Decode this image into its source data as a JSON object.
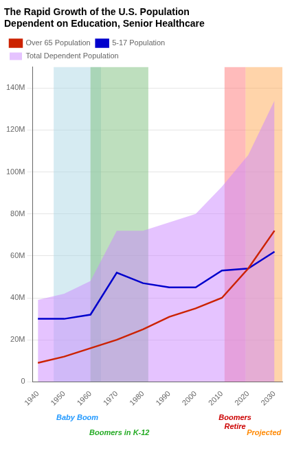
{
  "chart_data": {
    "type": "line",
    "title": [
      "The Rapid Growth of the U.S. Population",
      "Dependent on Education, Senior Healthcare"
    ],
    "x": [
      1940,
      1950,
      1960,
      1970,
      1980,
      1990,
      2000,
      2010,
      2020,
      2030
    ],
    "series": [
      {
        "name": "Total Dependent Population",
        "color": "#CC88FF",
        "type": "area",
        "values": [
          39,
          42,
          48,
          72,
          72,
          76,
          80,
          93,
          108,
          134
        ]
      },
      {
        "name": "Over 65 Population",
        "color": "#CC2200",
        "type": "line",
        "values": [
          9,
          12,
          16,
          20,
          25,
          31,
          35,
          40,
          54,
          72
        ]
      },
      {
        "name": "5-17 Population",
        "color": "#0000CC",
        "type": "line",
        "values": [
          30,
          30,
          32,
          52,
          47,
          45,
          45,
          53,
          54,
          62
        ]
      }
    ],
    "xlim": [
      1938,
      2033
    ],
    "xticks": [
      1940,
      1950,
      1960,
      1970,
      1980,
      1990,
      2000,
      2010,
      2020,
      2030
    ],
    "ylim": [
      0,
      150
    ],
    "yticks": [
      0,
      {
        "value": 20,
        "label": "20M"
      },
      {
        "value": 40,
        "label": "40M"
      },
      {
        "value": 60,
        "label": "60M"
      },
      {
        "value": 80,
        "label": "80M"
      },
      {
        "value": 100,
        "label": "100M"
      },
      {
        "value": 120,
        "label": "120M"
      },
      {
        "value": 140,
        "label": "140M"
      }
    ],
    "grid": "y",
    "legend": "upper left",
    "shade_regions": [
      {
        "x0": 1946,
        "x1": 1964,
        "color": "#add8e6"
      },
      {
        "x0": 1960,
        "x1": 1982,
        "color": "#7dbf7d"
      },
      {
        "x0": 2011,
        "x1": 2019,
        "color": "#FF7777"
      },
      {
        "x0": 2019,
        "x1": 2033,
        "color": "#FFAA55"
      }
    ],
    "annotations": [
      {
        "text": "Baby Boom",
        "x": 1955,
        "color": "#2299FF"
      },
      {
        "text": "Boomers in K-12",
        "x": 1971,
        "color": "#22AA22"
      },
      {
        "text": "Boomers\nRetire",
        "x": 2015,
        "color": "#CC0000"
      },
      {
        "text": "Projected",
        "x": 2026,
        "color": "#FF8800"
      }
    ]
  }
}
